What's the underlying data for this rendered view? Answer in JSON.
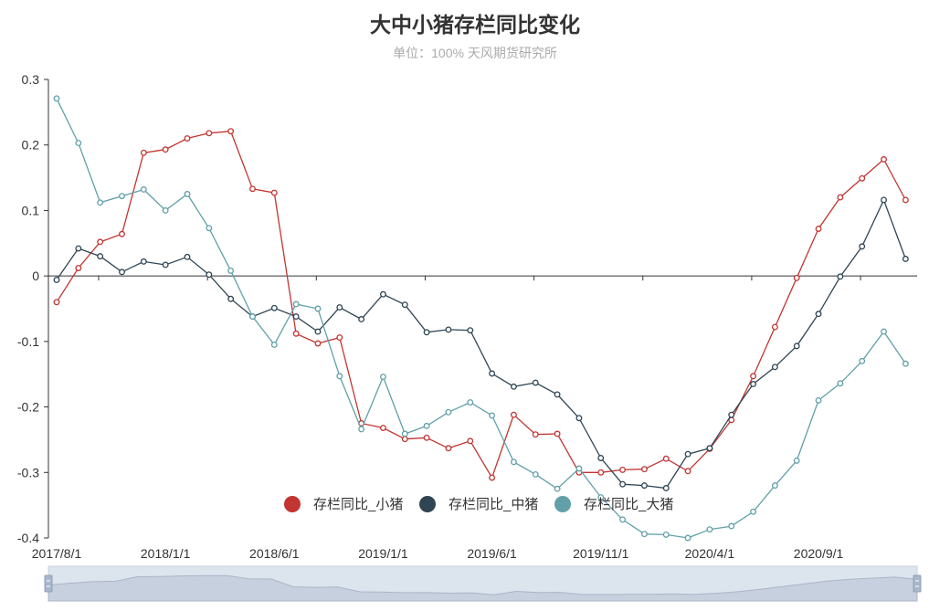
{
  "chart_data": {
    "type": "line",
    "title": "大中小猪存栏同比变化",
    "subtitle": "单位：100% 天风期货研究所",
    "ylim": [
      -0.4,
      0.3
    ],
    "y_ticks": [
      "0.3",
      "0.2",
      "0.1",
      "0",
      "-0.1",
      "-0.2",
      "-0.3",
      "-0.4"
    ],
    "x_tick_labels": [
      "2017/8/1",
      "2018/1/1",
      "2018/6/1",
      "2019/1/1",
      "2019/6/1",
      "2019/11/1",
      "2020/4/1",
      "2020/9/1"
    ],
    "x_tick_indices": [
      0,
      5,
      10,
      15,
      20,
      25,
      30,
      35
    ],
    "legend_position": "bottom-center",
    "series": [
      {
        "name": "存栏同比_小猪",
        "color": "#c23531",
        "values": [
          -0.04,
          0.012,
          0.052,
          0.064,
          0.188,
          0.193,
          0.21,
          0.218,
          0.221,
          0.133,
          0.127,
          -0.088,
          -0.103,
          -0.094,
          -0.225,
          -0.232,
          -0.249,
          -0.247,
          -0.263,
          -0.252,
          -0.308,
          -0.212,
          -0.242,
          -0.241,
          -0.3,
          -0.3,
          -0.296,
          -0.295,
          -0.279,
          -0.298,
          -0.264,
          -0.22,
          -0.153,
          -0.078,
          -0.003,
          0.072,
          0.12,
          0.149,
          0.178,
          0.116
        ]
      },
      {
        "name": "存栏同比_中猪",
        "color": "#2f4554",
        "values": [
          -0.006,
          0.042,
          0.03,
          0.006,
          0.022,
          0.017,
          0.029,
          0.002,
          -0.035,
          -0.062,
          -0.049,
          -0.062,
          -0.085,
          -0.048,
          -0.066,
          -0.028,
          -0.044,
          -0.086,
          -0.082,
          -0.083,
          -0.149,
          -0.169,
          -0.163,
          -0.181,
          -0.217,
          -0.278,
          -0.318,
          -0.32,
          -0.324,
          -0.272,
          -0.263,
          -0.212,
          -0.165,
          -0.139,
          -0.107,
          -0.058,
          -0.001,
          0.045,
          0.116,
          0.026
        ]
      },
      {
        "name": "存栏同比_大猪",
        "color": "#61a0a8",
        "values": [
          0.271,
          0.203,
          0.112,
          0.122,
          0.132,
          0.1,
          0.125,
          0.073,
          0.008,
          -0.062,
          -0.105,
          -0.043,
          -0.05,
          -0.153,
          -0.234,
          -0.154,
          -0.241,
          -0.229,
          -0.208,
          -0.193,
          -0.213,
          -0.284,
          -0.303,
          -0.325,
          -0.294,
          -0.338,
          -0.372,
          -0.394,
          -0.395,
          -0.4,
          -0.387,
          -0.382,
          -0.36,
          -0.32,
          -0.282,
          -0.19,
          -0.164,
          -0.13,
          -0.085,
          -0.134
        ]
      }
    ]
  },
  "slider": {
    "label": "data-zoom",
    "start_percent": 0,
    "end_percent": 100
  }
}
